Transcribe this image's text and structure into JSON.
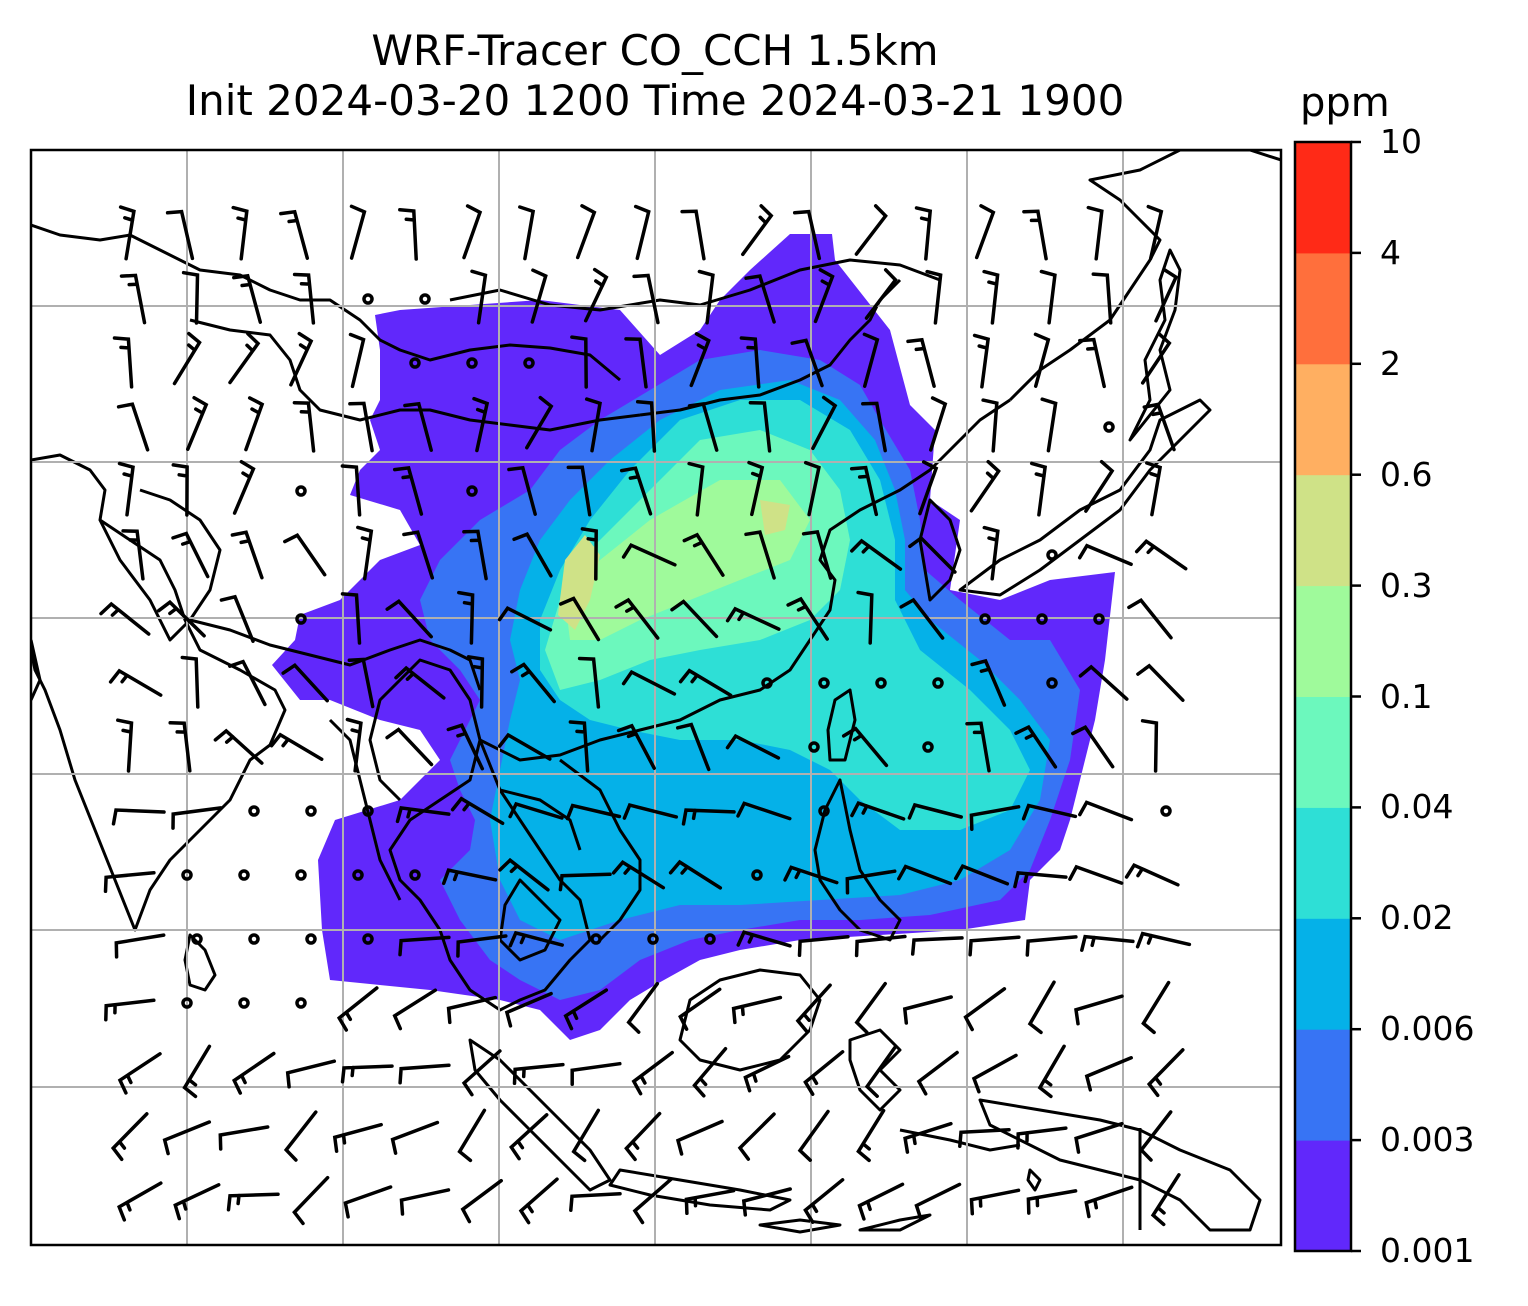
{
  "title": {
    "line1": "WRF-Tracer CO_CCH 1.5km",
    "line2": "Init 2024-03-20 1200 Time 2024-03-21 1900"
  },
  "colorbar": {
    "unit": "ppm",
    "levels": [
      "0.001",
      "0.003",
      "0.006",
      "0.02",
      "0.04",
      "0.1",
      "0.3",
      "0.6",
      "2",
      "4",
      "10"
    ],
    "colors": [
      "#6128fb",
      "#3774f4",
      "#05b1e8",
      "#2edfd6",
      "#6cf8bd",
      "#9ffa9b",
      "#cfe287",
      "#ffaf61",
      "#ff6f3c",
      "#ff2a17"
    ]
  },
  "chart_data": {
    "type": "heatmap",
    "variable": "CO_CCH tracer at 1.5km",
    "units": "ppm",
    "levels": [
      0.001,
      0.003,
      0.006,
      0.02,
      0.04,
      0.1,
      0.3,
      0.6,
      2,
      4,
      10
    ],
    "max_level_observed": "0.3-0.6",
    "overlays": [
      "coastlines",
      "lat-lon gridlines",
      "wind barbs"
    ]
  }
}
